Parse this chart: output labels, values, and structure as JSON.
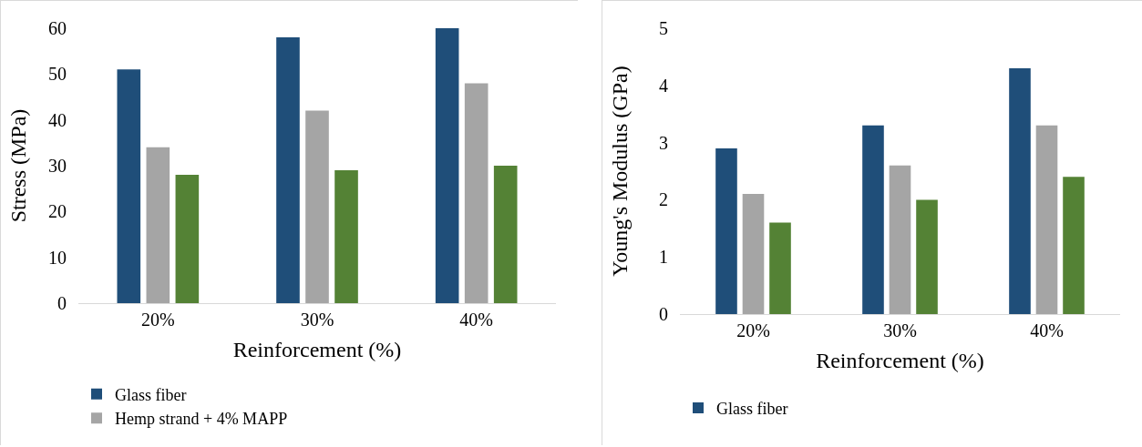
{
  "chart_data": [
    {
      "type": "bar",
      "categories": [
        "20%",
        "30%",
        "40%"
      ],
      "xlabel": "Reinforcement (%)",
      "ylabel": "Stress (MPa)",
      "ylim": [
        0,
        60
      ],
      "yticks": [
        0,
        10,
        20,
        30,
        40,
        50,
        60
      ],
      "grid": false,
      "legend": "bottom",
      "series": [
        {
          "name": "Glass fiber",
          "color": "#1f4e79",
          "values": [
            51,
            58,
            60
          ]
        },
        {
          "name": "Hemp strand + 4% MAPP",
          "color": "#a5a5a5",
          "values": [
            34,
            42,
            48
          ]
        },
        {
          "color": "#548235",
          "values": [
            28,
            29,
            30
          ]
        }
      ]
    },
    {
      "type": "bar",
      "categories": [
        "20%",
        "30%",
        "40%"
      ],
      "xlabel": "Reinforcement (%)",
      "ylabel": "Young's Modulus (GPa)",
      "ylim": [
        0,
        5
      ],
      "yticks": [
        0,
        1,
        2,
        3,
        4,
        5
      ],
      "grid": false,
      "legend": "bottom",
      "series": [
        {
          "name": "Glass fiber",
          "color": "#1f4e79",
          "values": [
            2.9,
            3.3,
            4.3
          ]
        },
        {
          "color": "#a5a5a5",
          "values": [
            2.1,
            2.6,
            3.3
          ]
        },
        {
          "color": "#548235",
          "values": [
            1.6,
            2.0,
            2.4
          ]
        }
      ]
    }
  ]
}
